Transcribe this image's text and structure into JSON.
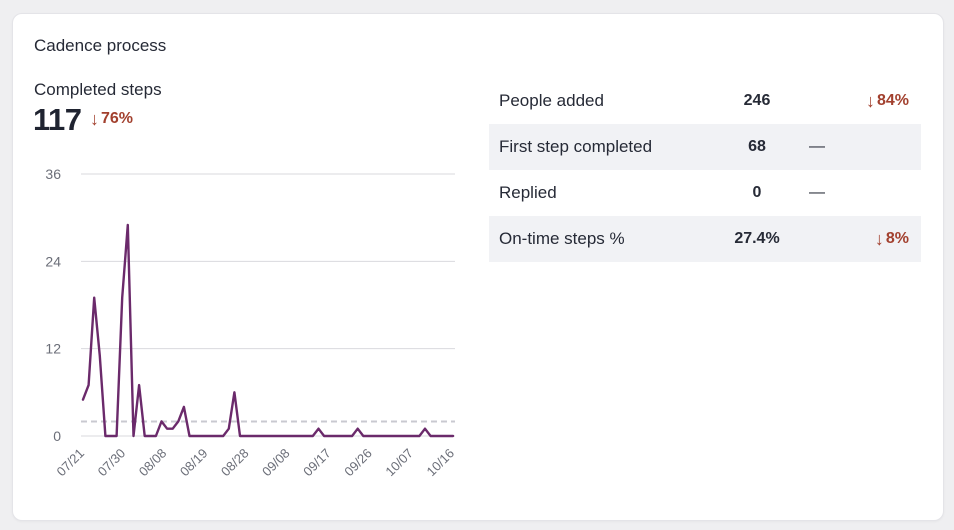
{
  "card": {
    "title": "Cadence process"
  },
  "metric": {
    "label": "Completed steps",
    "value": "117",
    "change": "76%",
    "change_direction": "down",
    "change_icon": "arrow-down-icon"
  },
  "colors": {
    "negative": "#a2402e",
    "line": "#6b2a6b",
    "grid": "#d9d9de",
    "baseline_dashed": "#c9c9d0",
    "row_alt_bg": "#f1f2f5"
  },
  "chart_data": {
    "type": "line",
    "title": "",
    "xlabel": "",
    "ylabel": "",
    "ylim": [
      0,
      36
    ],
    "yticks": [
      "0",
      "12",
      "24",
      "36"
    ],
    "xtick_labels": [
      "07/21",
      "07/30",
      "08/08",
      "08/19",
      "08/28",
      "09/08",
      "09/17",
      "09/26",
      "10/07",
      "10/16"
    ],
    "reference_line": 2,
    "series": [
      {
        "values": [
          5,
          7,
          19,
          11,
          0,
          0,
          0,
          19,
          29,
          0,
          7,
          0,
          0,
          0,
          2,
          1,
          1,
          2,
          4,
          0,
          0,
          0,
          0,
          0,
          0,
          0,
          1,
          6,
          0,
          0,
          0,
          0,
          0,
          0,
          0,
          0,
          0,
          0,
          0,
          0,
          0,
          0,
          1,
          0,
          0,
          0,
          0,
          0,
          0,
          1,
          0,
          0,
          0,
          0,
          0,
          0,
          0,
          0,
          0,
          0,
          0,
          1,
          0,
          0,
          0,
          0,
          0
        ]
      }
    ]
  },
  "stats": [
    {
      "label": "People added",
      "value": "246",
      "change": "84%",
      "direction": "down"
    },
    {
      "label": "First step completed",
      "value": "68",
      "change": "—",
      "direction": "none"
    },
    {
      "label": "Replied",
      "value": "0",
      "change": "—",
      "direction": "none"
    },
    {
      "label": "On-time steps %",
      "value": "27.4%",
      "change": "8%",
      "direction": "down"
    }
  ]
}
